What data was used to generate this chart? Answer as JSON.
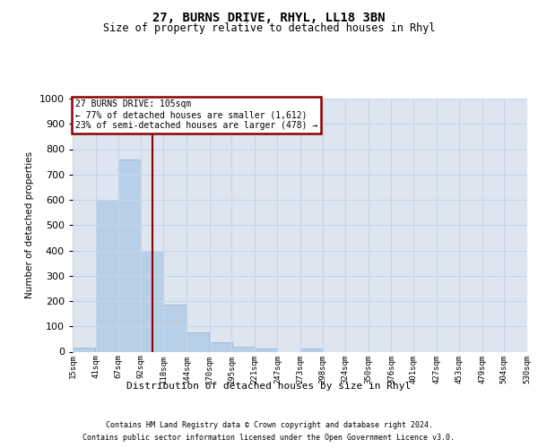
{
  "title": "27, BURNS DRIVE, RHYL, LL18 3BN",
  "subtitle": "Size of property relative to detached houses in Rhyl",
  "xlabel": "Distribution of detached houses by size in Rhyl",
  "ylabel": "Number of detached properties",
  "footer_line1": "Contains HM Land Registry data © Crown copyright and database right 2024.",
  "footer_line2": "Contains public sector information licensed under the Open Government Licence v3.0.",
  "bins": [
    15,
    41,
    67,
    92,
    118,
    144,
    170,
    195,
    221,
    247,
    273,
    298,
    324,
    350,
    376,
    401,
    427,
    453,
    479,
    504,
    530
  ],
  "bin_labels": [
    "15sqm",
    "41sqm",
    "67sqm",
    "92sqm",
    "118sqm",
    "144sqm",
    "170sqm",
    "195sqm",
    "221sqm",
    "247sqm",
    "273sqm",
    "298sqm",
    "324sqm",
    "350sqm",
    "376sqm",
    "401sqm",
    "427sqm",
    "453sqm",
    "479sqm",
    "504sqm",
    "530sqm"
  ],
  "values": [
    15,
    600,
    760,
    400,
    185,
    75,
    38,
    18,
    12,
    0,
    12,
    0,
    0,
    0,
    0,
    0,
    0,
    0,
    0,
    0
  ],
  "bar_color": "#b8cfe8",
  "bar_edge_color": "#8ab0d0",
  "grid_color": "#c8d5e8",
  "background_color": "#dde6f0",
  "vline_x": 105,
  "vline_color": "#8b0000",
  "annotation_text": "27 BURNS DRIVE: 105sqm\n← 77% of detached houses are smaller (1,612)\n23% of semi-detached houses are larger (478) →",
  "annotation_box_color": "#8b0000",
  "ylim": [
    0,
    1000
  ],
  "yticks": [
    0,
    100,
    200,
    300,
    400,
    500,
    600,
    700,
    800,
    900,
    1000
  ]
}
